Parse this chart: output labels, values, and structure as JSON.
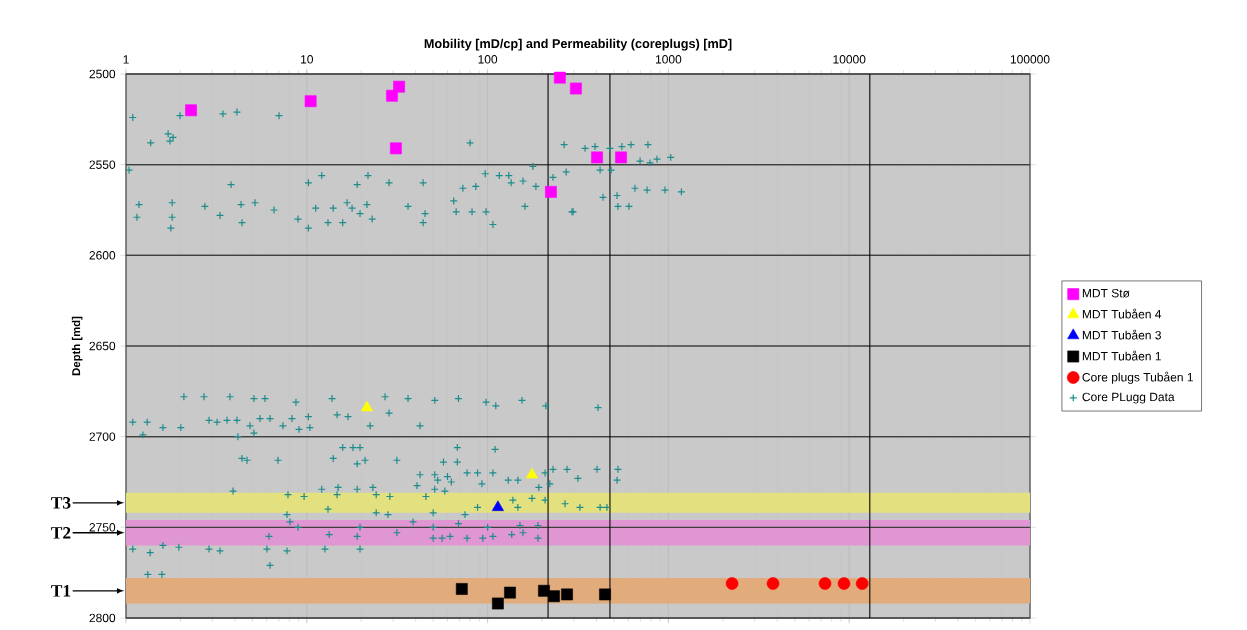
{
  "chart_data": {
    "type": "scatter",
    "xlabel": "Mobility [mD/cp] and Permeability (coreplugs) [mD]",
    "ylabel": "Depth [md]",
    "log": "x",
    "xlim": [
      1,
      100000
    ],
    "xticks": [
      1,
      10,
      100,
      1000,
      10000,
      100000
    ],
    "ylim": [
      2800,
      2500
    ],
    "yticks": [
      2500,
      2550,
      2600,
      2650,
      2700,
      2750,
      2800
    ],
    "grid": true,
    "legend": "right",
    "bands": [
      {
        "axis": "y",
        "from": 2731,
        "to": 2742,
        "label": "T3",
        "color": "#e3e17f"
      },
      {
        "axis": "y",
        "from": 2746,
        "to": 2760,
        "label": "T2",
        "color": "#df96d2"
      },
      {
        "axis": "y",
        "from": 2778,
        "to": 2792,
        "label": "T1",
        "color": "#e2ab7c"
      }
    ],
    "ref_lines": [
      {
        "axis": "x",
        "value": 216,
        "color": "#000000"
      },
      {
        "axis": "x",
        "value": 475,
        "color": "#000000"
      },
      {
        "axis": "x",
        "value": 13000,
        "color": "#000000"
      }
    ],
    "series": [
      {
        "name": "MDT Stø",
        "color": "#ff00ff",
        "marker": "square",
        "x": [
          2.29,
          10.5,
          29.6,
          32.4,
          31.1,
          251,
          308,
          403,
          547,
          224
        ],
        "values": [
          2520,
          2515,
          2512,
          2507,
          2541,
          2502,
          2508,
          2546,
          2546,
          2565
        ]
      },
      {
        "name": "MDT Tubåen 4",
        "color": "#ffff00",
        "marker": "triangle",
        "x": [
          21.5,
          176
        ],
        "values": [
          2684,
          2721
        ]
      },
      {
        "name": "MDT Tubåen 3",
        "color": "#0000ff",
        "marker": "triangle",
        "x": [
          114
        ],
        "values": [
          2739
        ]
      },
      {
        "name": "MDT Tubåen 1",
        "color": "#000000",
        "marker": "square",
        "x": [
          72,
          114,
          133,
          205,
          233,
          275,
          446
        ],
        "values": [
          2784,
          2792,
          2786,
          2785,
          2788,
          2787,
          2787
        ]
      },
      {
        "name": "Core plugs Tubåen 1",
        "color": "#ff0000",
        "marker": "circle",
        "x": [
          2250,
          3790,
          7350,
          9360,
          11800
        ],
        "values": [
          2781,
          2781,
          2781,
          2781,
          2781
        ]
      },
      {
        "name": "Core PLugg Data",
        "color": "#1e8c8c",
        "marker": "cross",
        "x": [
          1.09,
          1.04,
          1.37,
          1.71,
          1.75,
          1.82,
          1.99,
          3.44,
          4.11,
          7.02,
          80,
          1.18,
          1.15,
          1.77,
          1.8,
          1.8,
          2.73,
          3.31,
          4.38,
          4.33,
          5.17,
          6.59,
          3.81,
          8.94,
          10.2,
          10.2,
          11.2,
          12.1,
          13.1,
          14,
          16.7,
          17.8,
          15.8,
          19,
          19.7,
          21.5,
          21.8,
          23,
          28.5,
          36.3,
          44,
          45.1,
          44,
          65,
          73,
          67,
          82,
          98,
          107,
          86,
          97,
          116,
          131,
          135,
          157,
          161,
          178,
          185,
          230,
          272,
          293,
          265,
          346,
          393,
          475,
          553,
          621,
          771,
          1030,
          791,
          697,
          865,
          419,
          482,
          435,
          520,
          653,
          762,
          957,
          1180,
          526,
          605,
          297,
          1.09,
          1.31,
          1.6,
          2.01,
          2.88,
          3.19,
          3.62,
          4.11,
          4.85,
          5.51,
          6.26,
          7.38,
          8.28,
          10.2,
          9.06,
          10.4,
          14.7,
          16.9,
          22.4,
          28.5,
          42.3,
          1.24,
          4.16,
          5.1,
          2.09,
          2.7,
          3.76,
          5.1,
          5.87,
          8.71,
          13.8,
          27.1,
          36.3,
          51,
          69,
          98,
          111,
          155,
          210,
          408,
          15.8,
          18,
          19.7,
          4.38,
          4.67,
          6.93,
          14,
          21,
          19,
          31.5,
          68,
          110,
          57,
          68,
          42.3,
          51,
          60,
          77,
          88,
          107,
          53,
          63,
          93,
          130,
          147,
          208,
          230,
          275,
          403,
          526,
          316,
          520,
          221,
          192,
          3.91,
          12.1,
          14.9,
          19,
          23.2,
          40.7,
          51,
          58,
          7.87,
          9.66,
          14.7,
          24.2,
          28.8,
          45.6,
          13.1,
          24.2,
          88,
          138,
          147,
          176,
          208,
          268,
          324,
          419,
          457,
          7.77,
          28.1,
          50,
          75,
          8.07,
          8.94,
          19.7,
          31.5,
          38.7,
          50,
          69,
          100,
          151,
          190,
          6.18,
          13.3,
          19,
          50,
          56,
          62,
          77,
          94,
          107,
          136,
          157,
          190,
          1.09,
          1.36,
          1.6,
          1.96,
          2.88,
          3.31,
          6.02,
          7.77,
          12.6,
          19.7,
          6.26,
          1.32,
          1.58
        ],
        "values": [
          2524,
          2553,
          2538,
          2533,
          2537,
          2535,
          2523,
          2522,
          2521,
          2523,
          2538,
          2572,
          2579,
          2585,
          2579,
          2571,
          2573,
          2578,
          2582,
          2572,
          2571,
          2575,
          2561,
          2580,
          2585,
          2560,
          2574,
          2556,
          2582,
          2574,
          2571,
          2574,
          2582,
          2561,
          2577,
          2572,
          2556,
          2580,
          2560,
          2573,
          2582,
          2577,
          2560,
          2570,
          2563,
          2576,
          2576,
          2576,
          2583,
          2562,
          2555,
          2556,
          2556,
          2560,
          2559,
          2573,
          2551,
          2562,
          2557,
          2554,
          2576,
          2539,
          2541,
          2540,
          2541,
          2540,
          2539,
          2539,
          2546,
          2549,
          2548,
          2547,
          2553,
          2553,
          2568,
          2567,
          2563,
          2564,
          2564,
          2565,
          2573,
          2573,
          2576,
          2692,
          2692,
          2695,
          2695,
          2691,
          2692,
          2691,
          2691,
          2694,
          2690,
          2690,
          2694,
          2690,
          2689,
          2696,
          2695,
          2688,
          2689,
          2694,
          2687,
          2694,
          2699,
          2700,
          2698,
          2678,
          2678,
          2678,
          2679,
          2679,
          2681,
          2679,
          2678,
          2679,
          2680,
          2679,
          2681,
          2683,
          2680,
          2683,
          2684,
          2706,
          2706,
          2706,
          2712,
          2713,
          2713,
          2712,
          2713,
          2715,
          2713,
          2706,
          2707,
          2714,
          2714,
          2721,
          2721,
          2722,
          2720,
          2720,
          2720,
          2724,
          2725,
          2726,
          2724,
          2724,
          2720,
          2718,
          2718,
          2718,
          2718,
          2723,
          2724,
          2726,
          2728,
          2730,
          2729,
          2728,
          2729,
          2728,
          2727,
          2729,
          2730,
          2732,
          2733,
          2732,
          2732,
          2733,
          2733,
          2740,
          2742,
          2739,
          2735,
          2739,
          2734,
          2735,
          2737,
          2739,
          2739,
          2739,
          2743,
          2743,
          2742,
          2743,
          2747,
          2750,
          2750,
          2753,
          2747,
          2750,
          2748,
          2750,
          2749,
          2749,
          2755,
          2754,
          2755,
          2756,
          2756,
          2755,
          2756,
          2756,
          2755,
          2754,
          2753,
          2756,
          2762,
          2764,
          2760,
          2761,
          2762,
          2763,
          2762,
          2763,
          2762,
          2762,
          2771,
          2776,
          2776
        ]
      }
    ]
  }
}
